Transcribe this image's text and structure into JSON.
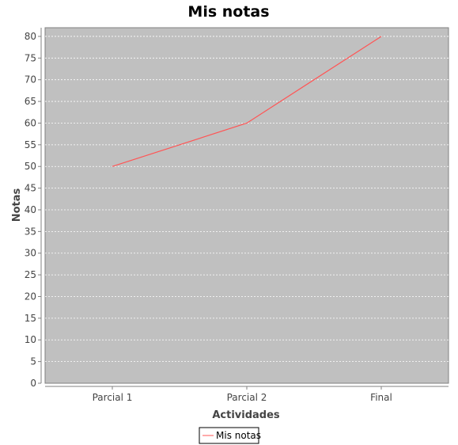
{
  "chart_data": {
    "type": "line",
    "title": "Mis notas",
    "xlabel": "Actividades",
    "ylabel": "Notas",
    "categories": [
      "Parcial 1",
      "Parcial 2",
      "Final"
    ],
    "series": [
      {
        "name": "Mis notas",
        "values": [
          50,
          60,
          80
        ],
        "color": "#ff5555"
      }
    ],
    "ylim": [
      0,
      82
    ],
    "yticks": [
      0,
      5,
      10,
      15,
      20,
      25,
      30,
      35,
      40,
      45,
      50,
      55,
      60,
      65,
      70,
      75,
      80
    ],
    "grid": true,
    "legend": "bottom-center",
    "plot_background": "#c0c0c0",
    "grid_color": "#ffffff"
  }
}
